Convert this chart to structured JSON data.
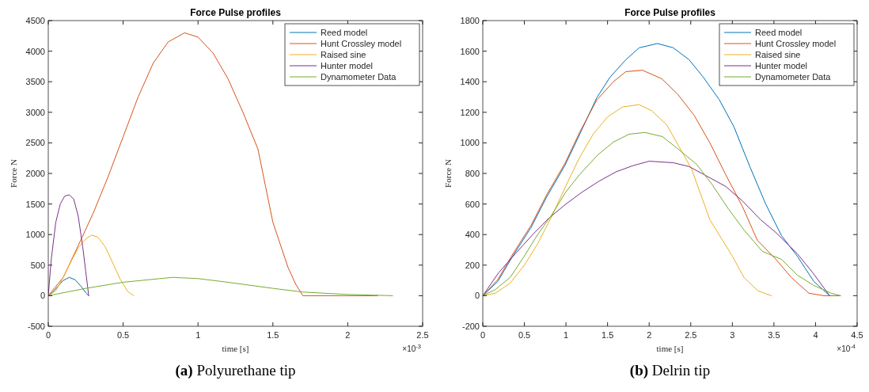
{
  "chart_data": [
    {
      "type": "line",
      "title": "Force Pulse profiles",
      "xlabel": "time [s]",
      "ylabel": "Force N",
      "legend": "top right",
      "grid": false,
      "xlim": [
        0,
        2.5
      ],
      "xticks": [
        0,
        0.5,
        1,
        1.5,
        2,
        2.5
      ],
      "ylim": [
        -500,
        4500
      ],
      "yticks": [
        -500,
        0,
        500,
        1000,
        1500,
        2000,
        2500,
        3000,
        3500,
        4000,
        4500
      ],
      "annotations": [
        "×10$^{-3}$",
        "(a) Polyurethane tip"
      ],
      "series": [
        {
          "name": "Reed model",
          "color": "#0072bd",
          "x": [
            0,
            0.03,
            0.07,
            0.1,
            0.14,
            0.18,
            0.22,
            0.25,
            0.27
          ],
          "values": [
            0,
            60,
            170,
            250,
            300,
            260,
            150,
            50,
            0
          ]
        },
        {
          "name": "Hunt Crossley model",
          "color": "#d95319",
          "x": [
            0,
            0.1,
            0.2,
            0.3,
            0.4,
            0.5,
            0.6,
            0.7,
            0.8,
            0.91,
            1.0,
            1.1,
            1.2,
            1.3,
            1.4,
            1.45,
            1.5,
            1.6,
            1.65,
            1.7,
            2.2
          ],
          "values": [
            0,
            300,
            820,
            1350,
            1950,
            2600,
            3250,
            3800,
            4150,
            4300,
            4230,
            3970,
            3550,
            3000,
            2400,
            1800,
            1200,
            470,
            200,
            0,
            0
          ]
        },
        {
          "name": "Raised sine",
          "color": "#edb120",
          "x": [
            0,
            0.05,
            0.1,
            0.15,
            0.2,
            0.25,
            0.29,
            0.33,
            0.38,
            0.43,
            0.48,
            0.53,
            0.57
          ],
          "values": [
            0,
            80,
            300,
            550,
            780,
            930,
            990,
            960,
            800,
            540,
            270,
            70,
            0
          ]
        },
        {
          "name": "Hunter model",
          "color": "#7e2f8e",
          "x": [
            0,
            0.02,
            0.05,
            0.08,
            0.11,
            0.14,
            0.17,
            0.2,
            0.23,
            0.25,
            0.27
          ],
          "values": [
            0,
            600,
            1200,
            1500,
            1630,
            1650,
            1580,
            1300,
            800,
            400,
            0
          ]
        },
        {
          "name": "Dynamometer Data",
          "color": "#77ac30",
          "x": [
            0,
            0.25,
            0.5,
            0.83,
            1.0,
            1.2,
            1.5,
            1.7,
            2.0,
            2.3
          ],
          "values": [
            0,
            120,
            220,
            300,
            280,
            220,
            120,
            60,
            20,
            0
          ]
        }
      ]
    },
    {
      "type": "line",
      "title": "Force Pulse profiles",
      "xlabel": "time [s]",
      "ylabel": "Force N",
      "legend": "top right",
      "grid": false,
      "xlim": [
        0,
        4.5
      ],
      "xticks": [
        0,
        0.5,
        1,
        1.5,
        2,
        2.5,
        3,
        3.5,
        4,
        4.5
      ],
      "ylim": [
        -200,
        1800
      ],
      "yticks": [
        -200,
        0,
        200,
        400,
        600,
        800,
        1000,
        1200,
        1400,
        1600,
        1800
      ],
      "annotations": [
        "×10$^{-4}$",
        "(b) Delrin tip"
      ],
      "series": [
        {
          "name": "Reed model",
          "color": "#0072bd",
          "x": [
            0,
            0.18,
            0.36,
            0.58,
            0.77,
            0.99,
            1.17,
            1.37,
            1.53,
            1.72,
            1.88,
            2.1,
            2.29,
            2.48,
            2.65,
            2.84,
            3.02,
            3.21,
            3.4,
            3.59,
            3.78,
            3.98,
            4.17
          ],
          "values": [
            0,
            93,
            259,
            446,
            648,
            855,
            1062,
            1295,
            1430,
            1544,
            1622,
            1650,
            1622,
            1544,
            1430,
            1285,
            1104,
            845,
            601,
            394,
            259,
            93,
            0
          ]
        },
        {
          "name": "Hunt Crossley model",
          "color": "#d95319",
          "x": [
            0,
            0.18,
            0.36,
            0.58,
            0.77,
            0.99,
            1.17,
            1.37,
            1.57,
            1.72,
            1.92,
            2.15,
            2.34,
            2.54,
            2.73,
            2.92,
            3.12,
            3.3,
            3.52,
            3.71,
            3.92,
            4.1,
            4.3
          ],
          "values": [
            0,
            105,
            272,
            460,
            662,
            868,
            1075,
            1280,
            1400,
            1466,
            1475,
            1420,
            1320,
            1181,
            1000,
            792,
            585,
            363,
            240,
            119,
            16,
            0,
            0
          ]
        },
        {
          "name": "Raised sine",
          "color": "#edb120",
          "x": [
            0,
            0.15,
            0.33,
            0.5,
            0.66,
            0.83,
            1.0,
            1.16,
            1.33,
            1.5,
            1.68,
            1.88,
            2.03,
            2.21,
            2.51,
            2.73,
            3.0,
            3.14,
            3.31,
            3.47
          ],
          "values": [
            0,
            16,
            83,
            200,
            340,
            520,
            720,
            900,
            1060,
            1170,
            1235,
            1250,
            1210,
            1119,
            829,
            497,
            259,
            119,
            31,
            0
          ]
        },
        {
          "name": "Hunter model",
          "color": "#7e2f8e",
          "x": [
            0,
            0.19,
            0.4,
            0.6,
            0.8,
            1.0,
            1.2,
            1.4,
            1.6,
            1.8,
            2.0,
            2.29,
            2.48,
            2.66,
            2.92,
            3.12,
            3.34,
            3.52,
            3.78,
            3.96,
            4.17
          ],
          "values": [
            0,
            150,
            280,
            400,
            510,
            600,
            680,
            750,
            810,
            850,
            880,
            870,
            845,
            792,
            715,
            621,
            497,
            415,
            275,
            155,
            0
          ]
        },
        {
          "name": "Dynamometer Data",
          "color": "#77ac30",
          "x": [
            0,
            0.15,
            0.33,
            0.5,
            0.66,
            0.83,
            1.0,
            1.16,
            1.38,
            1.57,
            1.76,
            1.95,
            2.16,
            2.35,
            2.57,
            2.76,
            2.95,
            3.14,
            3.36,
            3.59,
            3.78,
            3.98,
            4.19,
            4.3
          ],
          "values": [
            0,
            40,
            120,
            260,
            400,
            530,
            680,
            790,
            920,
            1005,
            1057,
            1068,
            1041,
            959,
            860,
            725,
            570,
            430,
            290,
            238,
            135,
            67,
            16,
            0
          ]
        }
      ]
    }
  ]
}
